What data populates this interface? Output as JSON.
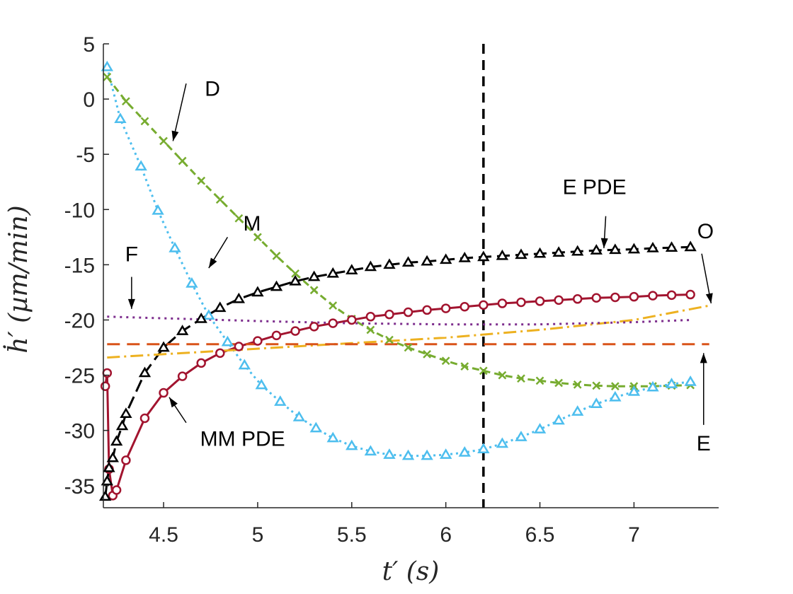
{
  "chart_data": {
    "type": "line",
    "xlabel": "t′ (s)",
    "ylabel": "ḣ′ (µm/min)",
    "xlim": [
      4.18,
      7.45
    ],
    "ylim": [
      -37,
      5
    ],
    "xticks": [
      4.5,
      5,
      5.5,
      6,
      6.5,
      7
    ],
    "xtick_labels": [
      "4.5",
      "5",
      "5.5",
      "6",
      "6.5",
      "7"
    ],
    "yticks": [
      5,
      0,
      -5,
      -10,
      -15,
      -20,
      -25,
      -30,
      -35
    ],
    "ytick_labels": [
      "5",
      "0",
      "-5",
      "-10",
      "-15",
      "-20",
      "-25",
      "-30",
      "-35"
    ],
    "vline": 6.2,
    "series": [
      {
        "name": "D",
        "color": "#77AC30",
        "dash": "10,6",
        "marker": "x",
        "x": [
          4.2,
          4.3,
          4.4,
          4.5,
          4.6,
          4.7,
          4.8,
          4.9,
          5.0,
          5.1,
          5.2,
          5.3,
          5.4,
          5.5,
          5.6,
          5.7,
          5.8,
          5.9,
          6.0,
          6.1,
          6.2,
          6.3,
          6.4,
          6.5,
          6.6,
          6.7,
          6.8,
          6.9,
          7.0,
          7.1,
          7.2,
          7.3
        ],
        "y": [
          2.0,
          -0.2,
          -2.0,
          -3.8,
          -5.6,
          -7.4,
          -9.1,
          -10.8,
          -12.5,
          -14.2,
          -15.8,
          -17.3,
          -18.7,
          -19.9,
          -20.9,
          -21.8,
          -22.5,
          -23.1,
          -23.7,
          -24.2,
          -24.6,
          -25.0,
          -25.3,
          -25.5,
          -25.7,
          -25.85,
          -25.95,
          -26.0,
          -26.0,
          -26.0,
          -25.95,
          -25.9
        ]
      },
      {
        "name": "M",
        "color": "#4DBEEE",
        "dash": "3,5",
        "marker": "triangle",
        "x": [
          4.2,
          4.27,
          4.38,
          4.47,
          4.56,
          4.65,
          4.74,
          4.84,
          4.93,
          5.02,
          5.12,
          5.22,
          5.31,
          5.4,
          5.5,
          5.6,
          5.7,
          5.8,
          5.9,
          6.0,
          6.1,
          6.2,
          6.3,
          6.4,
          6.5,
          6.6,
          6.7,
          6.8,
          6.9,
          7.0,
          7.1,
          7.2,
          7.3
        ],
        "y": [
          2.9,
          -1.8,
          -6.1,
          -10.1,
          -13.5,
          -16.7,
          -19.6,
          -22.0,
          -24.1,
          -25.9,
          -27.4,
          -28.8,
          -29.8,
          -30.7,
          -31.4,
          -31.9,
          -32.2,
          -32.3,
          -32.3,
          -32.2,
          -32.0,
          -31.7,
          -31.2,
          -30.6,
          -29.9,
          -29.1,
          -28.3,
          -27.6,
          -27.0,
          -26.5,
          -26.1,
          -25.8,
          -25.6
        ]
      },
      {
        "name": "MM PDE",
        "color": "#A2142F",
        "dash": "",
        "marker": "circle",
        "x": [
          4.19,
          4.2,
          4.21,
          4.23,
          4.25,
          4.3,
          4.4,
          4.5,
          4.6,
          4.7,
          4.8,
          4.9,
          5.0,
          5.1,
          5.2,
          5.3,
          5.4,
          5.5,
          5.6,
          5.7,
          5.8,
          5.9,
          6.0,
          6.1,
          6.2,
          6.3,
          6.4,
          6.5,
          6.6,
          6.7,
          6.8,
          6.9,
          7.0,
          7.1,
          7.2,
          7.3
        ],
        "y": [
          -26.0,
          -24.8,
          -33.5,
          -35.9,
          -35.4,
          -32.7,
          -28.9,
          -26.6,
          -25.1,
          -23.9,
          -23.0,
          -22.4,
          -21.9,
          -21.4,
          -21.0,
          -20.6,
          -20.3,
          -20.0,
          -19.7,
          -19.5,
          -19.3,
          -19.1,
          -18.95,
          -18.8,
          -18.65,
          -18.5,
          -18.4,
          -18.3,
          -18.2,
          -18.1,
          -18.0,
          -17.95,
          -17.9,
          -17.8,
          -17.75,
          -17.7
        ]
      },
      {
        "name": "E PDE",
        "color": "#000000",
        "dash": "18,8",
        "marker": "triangle",
        "x": [
          4.19,
          4.2,
          4.21,
          4.23,
          4.25,
          4.28,
          4.3,
          4.4,
          4.5,
          4.6,
          4.7,
          4.8,
          4.9,
          5.0,
          5.1,
          5.2,
          5.3,
          5.4,
          5.5,
          5.6,
          5.7,
          5.8,
          5.9,
          6.0,
          6.1,
          6.2,
          6.3,
          6.4,
          6.5,
          6.6,
          6.7,
          6.8,
          6.9,
          7.0,
          7.1,
          7.2,
          7.3
        ],
        "y": [
          -36.0,
          -34.6,
          -33.4,
          -32.5,
          -31.0,
          -29.6,
          -28.5,
          -24.8,
          -22.5,
          -21.0,
          -19.9,
          -18.9,
          -18.1,
          -17.5,
          -17.0,
          -16.5,
          -16.1,
          -15.8,
          -15.5,
          -15.2,
          -15.0,
          -14.8,
          -14.7,
          -14.55,
          -14.4,
          -14.3,
          -14.2,
          -14.1,
          -14.0,
          -13.9,
          -13.8,
          -13.7,
          -13.65,
          -13.6,
          -13.5,
          -13.45,
          -13.4
        ]
      },
      {
        "name": "O",
        "color": "#EDB120",
        "dash": "18,6,3,6",
        "marker": "none",
        "x": [
          4.2,
          4.5,
          5.0,
          5.5,
          6.0,
          6.5,
          7.0,
          7.4
        ],
        "y": [
          -23.4,
          -23.1,
          -22.6,
          -22.1,
          -21.6,
          -20.9,
          -20.0,
          -18.7
        ]
      },
      {
        "name": "F",
        "color": "#7E2F8E",
        "dash": "3,6",
        "marker": "none",
        "x": [
          4.2,
          4.5,
          5.0,
          5.5,
          6.0,
          6.5,
          7.0,
          7.3
        ],
        "y": [
          -19.7,
          -19.85,
          -20.1,
          -20.3,
          -20.4,
          -20.4,
          -20.2,
          -20.0
        ]
      },
      {
        "name": "E",
        "color": "#D95319",
        "dash": "18,10",
        "marker": "none",
        "x": [
          4.2,
          7.4
        ],
        "y": [
          -22.2,
          -22.2
        ]
      }
    ],
    "annotations": [
      {
        "text": "D",
        "tx": 4.76,
        "ty": 0.3,
        "ax1": 4.62,
        "ay1": 1.4,
        "ax2": 4.55,
        "ay2": -3.8
      },
      {
        "text": "M",
        "tx": 4.97,
        "ty": -11.9,
        "ax1": 4.84,
        "ay1": -12.5,
        "ax2": 4.74,
        "ay2": -15.3
      },
      {
        "text": "F",
        "tx": 4.33,
        "ty": -14.7,
        "ax1": 4.33,
        "ay1": -16.1,
        "ax2": 4.33,
        "ay2": -19.0
      },
      {
        "text": "MM PDE",
        "tx": 4.92,
        "ty": -31.4,
        "ax1": 4.62,
        "ay1": -29.3,
        "ax2": 4.53,
        "ay2": -27.0
      },
      {
        "text": "E PDE",
        "tx": 6.79,
        "ty": -8.6,
        "ax1": 6.85,
        "ay1": -10.6,
        "ax2": 6.84,
        "ay2": -13.5
      },
      {
        "text": "O",
        "tx": 7.38,
        "ty": -12.6,
        "ax1": 7.36,
        "ay1": -14.0,
        "ax2": 7.41,
        "ay2": -18.5
      },
      {
        "text": "E",
        "tx": 7.37,
        "ty": -31.8,
        "ax1": 7.37,
        "ay1": -29.5,
        "ax2": 7.37,
        "ay2": -23.0
      }
    ]
  }
}
